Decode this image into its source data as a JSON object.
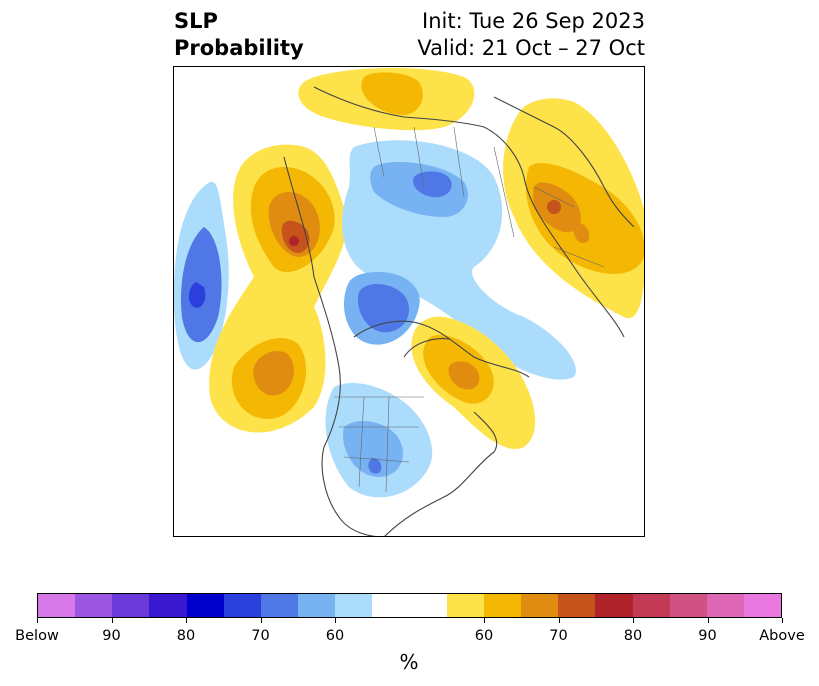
{
  "title": {
    "left_line1": "SLP",
    "left_line2": "Probability",
    "right_line1": "Init: Tue 26 Sep 2023",
    "right_line2": "Valid: 21 Oct – 27 Oct"
  },
  "colorbar": {
    "label": "%",
    "colors": [
      "#d678e8",
      "#9b57e2",
      "#6a3ad8",
      "#3a18d0",
      "#0000cc",
      "#2a3fdc",
      "#4f78e6",
      "#77b2f2",
      "#acdcfb",
      "#ffffff",
      "#ffffff",
      "#fee24a",
      "#f4b804",
      "#e08c10",
      "#c6531b",
      "#b0232a",
      "#c23a55",
      "#d05283",
      "#dd67b5",
      "#e878e0"
    ],
    "tick_labels": [
      "Below",
      "90",
      "80",
      "70",
      "60",
      "60",
      "70",
      "80",
      "90",
      "Above"
    ]
  }
}
